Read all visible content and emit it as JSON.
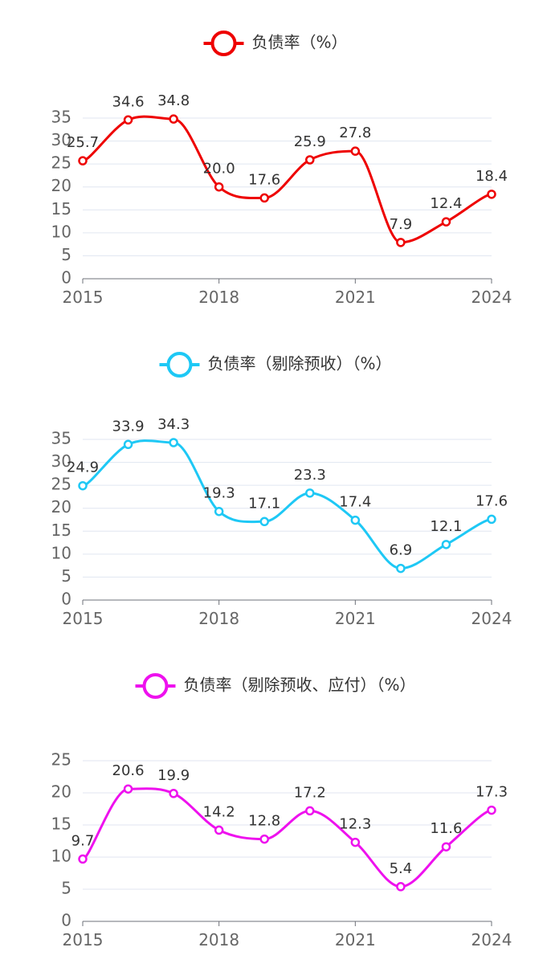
{
  "chart_data": [
    {
      "type": "line",
      "title": "",
      "legend": "负债率（%）",
      "legend_position": "top-center",
      "color": "#ee0000",
      "x": [
        "2015",
        "2016",
        "2017",
        "2018",
        "2019",
        "2020",
        "2021",
        "2022",
        "2023",
        "2024"
      ],
      "x_tick_labels": [
        "2015",
        "2018",
        "2021",
        "2024"
      ],
      "values": [
        25.7,
        34.6,
        34.8,
        20.0,
        17.6,
        25.9,
        27.8,
        7.9,
        12.4,
        18.4
      ],
      "y_ticks": [
        0,
        5,
        10,
        15,
        20,
        25,
        30,
        35
      ],
      "ylim": [
        0,
        35
      ],
      "smooth": true,
      "grid": true
    },
    {
      "type": "line",
      "title": "",
      "legend": "负债率（剔除预收）（%）",
      "legend_position": "top-center",
      "color": "#1ec8f5",
      "x": [
        "2015",
        "2016",
        "2017",
        "2018",
        "2019",
        "2020",
        "2021",
        "2022",
        "2023",
        "2024"
      ],
      "x_tick_labels": [
        "2015",
        "2018",
        "2021",
        "2024"
      ],
      "values": [
        24.9,
        33.9,
        34.3,
        19.3,
        17.1,
        23.3,
        17.4,
        6.9,
        12.1,
        17.6
      ],
      "y_ticks": [
        0,
        5,
        10,
        15,
        20,
        25,
        30,
        35
      ],
      "ylim": [
        0,
        35
      ],
      "smooth": true,
      "grid": true
    },
    {
      "type": "line",
      "title": "",
      "legend": "负债率（剔除预收、应付）（%）",
      "legend_position": "top-center",
      "color": "#ee11ee",
      "x": [
        "2015",
        "2016",
        "2017",
        "2018",
        "2019",
        "2020",
        "2021",
        "2022",
        "2023",
        "2024"
      ],
      "x_tick_labels": [
        "2015",
        "2018",
        "2021",
        "2024"
      ],
      "values": [
        9.7,
        20.6,
        19.9,
        14.2,
        12.8,
        17.2,
        12.3,
        5.4,
        11.6,
        17.3
      ],
      "y_ticks": [
        0,
        5,
        10,
        15,
        20,
        25
      ],
      "ylim": [
        0,
        25
      ],
      "smooth": true,
      "grid": true
    }
  ]
}
